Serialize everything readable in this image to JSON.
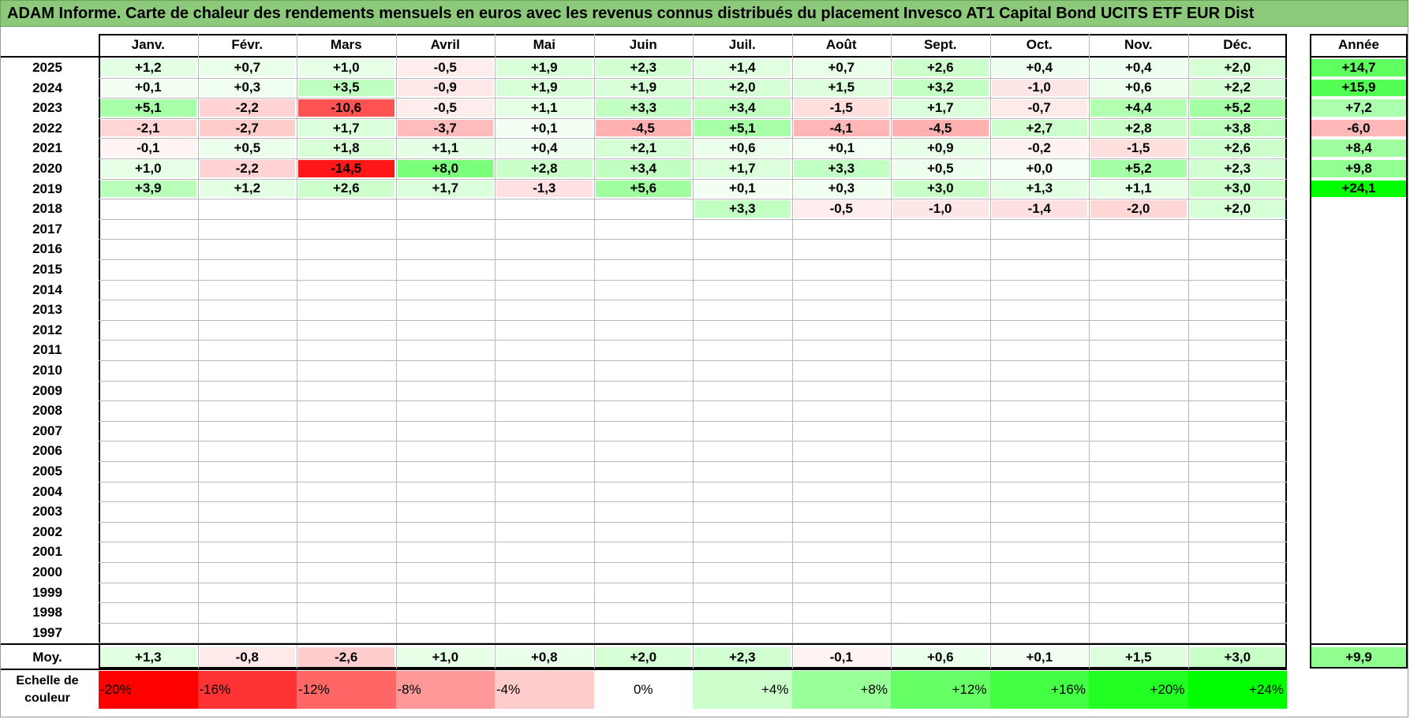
{
  "title": "ADAM Informe. Carte de chaleur des rendements mensuels en euros avec les revenus connus distribués du placement Invesco AT1 Capital Bond UCITS ETF EUR Dist",
  "chart_data": {
    "type": "heatmap",
    "columns": [
      "Janv.",
      "Févr.",
      "Mars",
      "Avril",
      "Mai",
      "Juin",
      "Juil.",
      "Août",
      "Sept.",
      "Oct.",
      "Nov.",
      "Déc."
    ],
    "year_header": "Année",
    "rows": [
      {
        "year": "2025",
        "values": [
          "+1,2",
          "+0,7",
          "+1,0",
          "-0,5",
          "+1,9",
          "+2,3",
          "+1,4",
          "+0,7",
          "+2,6",
          "+0,4",
          "+0,4",
          "+2,0"
        ],
        "annual": "+14,7"
      },
      {
        "year": "2024",
        "values": [
          "+0,1",
          "+0,3",
          "+3,5",
          "-0,9",
          "+1,9",
          "+1,9",
          "+2,0",
          "+1,5",
          "+3,2",
          "-1,0",
          "+0,6",
          "+2,2"
        ],
        "annual": "+15,9"
      },
      {
        "year": "2023",
        "values": [
          "+5,1",
          "-2,2",
          "-10,6",
          "-0,5",
          "+1,1",
          "+3,3",
          "+3,4",
          "-1,5",
          "+1,7",
          "-0,7",
          "+4,4",
          "+5,2"
        ],
        "annual": "+7,2"
      },
      {
        "year": "2022",
        "values": [
          "-2,1",
          "-2,7",
          "+1,7",
          "-3,7",
          "+0,1",
          "-4,5",
          "+5,1",
          "-4,1",
          "-4,5",
          "+2,7",
          "+2,8",
          "+3,8"
        ],
        "annual": "-6,0"
      },
      {
        "year": "2021",
        "values": [
          "-0,1",
          "+0,5",
          "+1,8",
          "+1,1",
          "+0,4",
          "+2,1",
          "+0,6",
          "+0,1",
          "+0,9",
          "-0,2",
          "-1,5",
          "+2,6"
        ],
        "annual": "+8,4"
      },
      {
        "year": "2020",
        "values": [
          "+1,0",
          "-2,2",
          "-14,5",
          "+8,0",
          "+2,8",
          "+3,4",
          "+1,7",
          "+3,3",
          "+0,5",
          "+0,0",
          "+5,2",
          "+2,3"
        ],
        "annual": "+9,8"
      },
      {
        "year": "2019",
        "values": [
          "+3,9",
          "+1,2",
          "+2,6",
          "+1,7",
          "-1,3",
          "+5,6",
          "+0,1",
          "+0,3",
          "+3,0",
          "+1,3",
          "+1,1",
          "+3,0"
        ],
        "annual": "+24,1"
      },
      {
        "year": "2018",
        "values": [
          "",
          "",
          "",
          "",
          "",
          "",
          "+3,3",
          "-0,5",
          "-1,0",
          "-1,4",
          "-2,0",
          "+2,0"
        ],
        "annual": ""
      },
      {
        "year": "2017",
        "values": [
          "",
          "",
          "",
          "",
          "",
          "",
          "",
          "",
          "",
          "",
          "",
          ""
        ],
        "annual": ""
      },
      {
        "year": "2016",
        "values": [
          "",
          "",
          "",
          "",
          "",
          "",
          "",
          "",
          "",
          "",
          "",
          ""
        ],
        "annual": ""
      },
      {
        "year": "2015",
        "values": [
          "",
          "",
          "",
          "",
          "",
          "",
          "",
          "",
          "",
          "",
          "",
          ""
        ],
        "annual": ""
      },
      {
        "year": "2014",
        "values": [
          "",
          "",
          "",
          "",
          "",
          "",
          "",
          "",
          "",
          "",
          "",
          ""
        ],
        "annual": ""
      },
      {
        "year": "2013",
        "values": [
          "",
          "",
          "",
          "",
          "",
          "",
          "",
          "",
          "",
          "",
          "",
          ""
        ],
        "annual": ""
      },
      {
        "year": "2012",
        "values": [
          "",
          "",
          "",
          "",
          "",
          "",
          "",
          "",
          "",
          "",
          "",
          ""
        ],
        "annual": ""
      },
      {
        "year": "2011",
        "values": [
          "",
          "",
          "",
          "",
          "",
          "",
          "",
          "",
          "",
          "",
          "",
          ""
        ],
        "annual": ""
      },
      {
        "year": "2010",
        "values": [
          "",
          "",
          "",
          "",
          "",
          "",
          "",
          "",
          "",
          "",
          "",
          ""
        ],
        "annual": ""
      },
      {
        "year": "2009",
        "values": [
          "",
          "",
          "",
          "",
          "",
          "",
          "",
          "",
          "",
          "",
          "",
          ""
        ],
        "annual": ""
      },
      {
        "year": "2008",
        "values": [
          "",
          "",
          "",
          "",
          "",
          "",
          "",
          "",
          "",
          "",
          "",
          ""
        ],
        "annual": ""
      },
      {
        "year": "2007",
        "values": [
          "",
          "",
          "",
          "",
          "",
          "",
          "",
          "",
          "",
          "",
          "",
          ""
        ],
        "annual": ""
      },
      {
        "year": "2006",
        "values": [
          "",
          "",
          "",
          "",
          "",
          "",
          "",
          "",
          "",
          "",
          "",
          ""
        ],
        "annual": ""
      },
      {
        "year": "2005",
        "values": [
          "",
          "",
          "",
          "",
          "",
          "",
          "",
          "",
          "",
          "",
          "",
          ""
        ],
        "annual": ""
      },
      {
        "year": "2004",
        "values": [
          "",
          "",
          "",
          "",
          "",
          "",
          "",
          "",
          "",
          "",
          "",
          ""
        ],
        "annual": ""
      },
      {
        "year": "2003",
        "values": [
          "",
          "",
          "",
          "",
          "",
          "",
          "",
          "",
          "",
          "",
          "",
          ""
        ],
        "annual": ""
      },
      {
        "year": "2002",
        "values": [
          "",
          "",
          "",
          "",
          "",
          "",
          "",
          "",
          "",
          "",
          "",
          ""
        ],
        "annual": ""
      },
      {
        "year": "2001",
        "values": [
          "",
          "",
          "",
          "",
          "",
          "",
          "",
          "",
          "",
          "",
          "",
          ""
        ],
        "annual": ""
      },
      {
        "year": "2000",
        "values": [
          "",
          "",
          "",
          "",
          "",
          "",
          "",
          "",
          "",
          "",
          "",
          ""
        ],
        "annual": ""
      },
      {
        "year": "1999",
        "values": [
          "",
          "",
          "",
          "",
          "",
          "",
          "",
          "",
          "",
          "",
          "",
          ""
        ],
        "annual": ""
      },
      {
        "year": "1998",
        "values": [
          "",
          "",
          "",
          "",
          "",
          "",
          "",
          "",
          "",
          "",
          "",
          ""
        ],
        "annual": ""
      },
      {
        "year": "1997",
        "values": [
          "",
          "",
          "",
          "",
          "",
          "",
          "",
          "",
          "",
          "",
          "",
          ""
        ],
        "annual": ""
      }
    ],
    "average": {
      "label": "Moy.",
      "values": [
        "+1,3",
        "-0,8",
        "-2,6",
        "+1,0",
        "+0,8",
        "+2,0",
        "+2,3",
        "-0,1",
        "+0,6",
        "+0,1",
        "+1,5",
        "+3,0"
      ],
      "annual": "+9,9"
    },
    "color_scale": {
      "label_line1": "Echelle de",
      "label_line2": "couleur",
      "steps": [
        {
          "label": "-20%",
          "value": -20,
          "color": "#ff0000"
        },
        {
          "label": "-16%",
          "value": -16,
          "color": "#ff3333"
        },
        {
          "label": "-12%",
          "value": -12,
          "color": "#ff6666"
        },
        {
          "label": "-8%",
          "value": -8,
          "color": "#ff9999"
        },
        {
          "label": "-4%",
          "value": -4,
          "color": "#ffcccc"
        },
        {
          "label": "0%",
          "value": 0,
          "color": "#ffffff"
        },
        {
          "label": "+4%",
          "value": 4,
          "color": "#ccffcc"
        },
        {
          "label": "+8%",
          "value": 8,
          "color": "#99ff99"
        },
        {
          "label": "+12%",
          "value": 12,
          "color": "#66ff66"
        },
        {
          "label": "+16%",
          "value": 16,
          "color": "#44ff44"
        },
        {
          "label": "+20%",
          "value": 20,
          "color": "#22ff22"
        },
        {
          "label": "+24%",
          "value": 24,
          "color": "#00ff00"
        }
      ]
    }
  }
}
